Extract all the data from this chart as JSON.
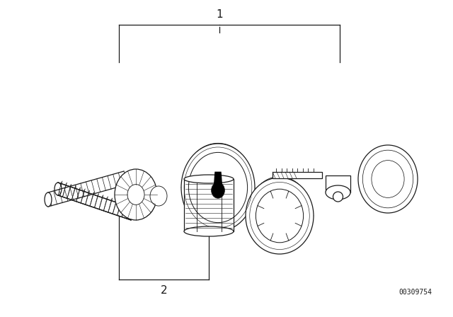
{
  "background_color": "#ffffff",
  "line_color": "#1a1a1a",
  "part_number": "00309754",
  "label_1": "1",
  "label_2": "2",
  "part_number_fontsize": 7,
  "label_fontsize": 11,
  "lw": 0.9
}
